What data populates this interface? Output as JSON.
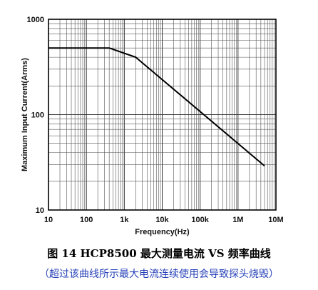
{
  "caption": {
    "title": "图 14 HCP8500 最大测量电流 VS 频率曲线",
    "note": "（超过该曲线所示最大电流连续使用会导致探头烧毁）"
  },
  "chart_data": {
    "type": "line",
    "xlabel": "Frequency(Hz)",
    "ylabel": "Maximum Input Current(Arms)",
    "x_scale": "log",
    "y_scale": "log",
    "xlim": [
      10,
      10000000
    ],
    "ylim": [
      10,
      1000
    ],
    "x_ticks": [
      {
        "value": 10,
        "label": "10"
      },
      {
        "value": 100,
        "label": "100"
      },
      {
        "value": 1000,
        "label": "1k"
      },
      {
        "value": 10000,
        "label": "10k"
      },
      {
        "value": 100000,
        "label": "100k"
      },
      {
        "value": 1000000,
        "label": "1M"
      },
      {
        "value": 10000000,
        "label": "10M"
      }
    ],
    "y_ticks": [
      {
        "value": 10,
        "label": "10"
      },
      {
        "value": 100,
        "label": "100"
      },
      {
        "value": 1000,
        "label": "1000"
      }
    ],
    "grid": true,
    "series": [
      {
        "x": [
          10,
          400,
          2000,
          5000000
        ],
        "y": [
          500,
          500,
          400,
          29
        ]
      }
    ]
  }
}
